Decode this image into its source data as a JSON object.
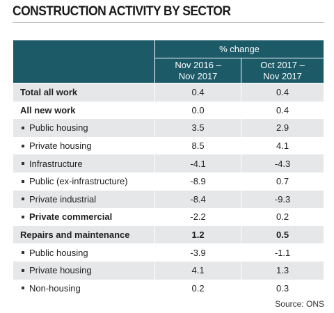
{
  "title": "CONSTRUCTION ACTIVITY BY SECTOR",
  "table": {
    "group_header": "% change",
    "columns": [
      "Nov 2016 –\nNov 2017",
      "Oct 2017 –\nNov 2017"
    ],
    "rows": [
      {
        "label": "Total all work",
        "values": [
          "0.4",
          "0.4"
        ],
        "bold": true,
        "bold_values": false,
        "sub": false
      },
      {
        "label": "All new work",
        "values": [
          "0.0",
          "0.4"
        ],
        "bold": true,
        "bold_values": false,
        "sub": false
      },
      {
        "label": "Public housing",
        "values": [
          "3.5",
          "2.9"
        ],
        "bold": false,
        "bold_values": false,
        "sub": true
      },
      {
        "label": "Private housing",
        "values": [
          "8.5",
          "4.1"
        ],
        "bold": false,
        "bold_values": false,
        "sub": true
      },
      {
        "label": "Infrastructure",
        "values": [
          "-4.1",
          "-4.3"
        ],
        "bold": false,
        "bold_values": false,
        "sub": true
      },
      {
        "label": "Public (ex-infrastructure)",
        "values": [
          "-8.9",
          "0.7"
        ],
        "bold": false,
        "bold_values": false,
        "sub": true
      },
      {
        "label": "Private industrial",
        "values": [
          "-8.4",
          "-9.3"
        ],
        "bold": false,
        "bold_values": false,
        "sub": true
      },
      {
        "label": "Private commercial",
        "values": [
          "-2.2",
          "0.2"
        ],
        "bold": true,
        "bold_values": false,
        "sub": true
      },
      {
        "label": "Repairs and maintenance",
        "values": [
          "1.2",
          "0.5"
        ],
        "bold": true,
        "bold_values": true,
        "sub": false
      },
      {
        "label": "Public housing",
        "values": [
          "-3.9",
          "-1.1"
        ],
        "bold": false,
        "bold_values": false,
        "sub": true
      },
      {
        "label": "Private housing",
        "values": [
          "4.1",
          "1.3"
        ],
        "bold": false,
        "bold_values": false,
        "sub": true
      },
      {
        "label": "Non-housing",
        "values": [
          "0.2",
          "0.3"
        ],
        "bold": false,
        "bold_values": false,
        "sub": true
      }
    ]
  },
  "source": "Source: ONS"
}
